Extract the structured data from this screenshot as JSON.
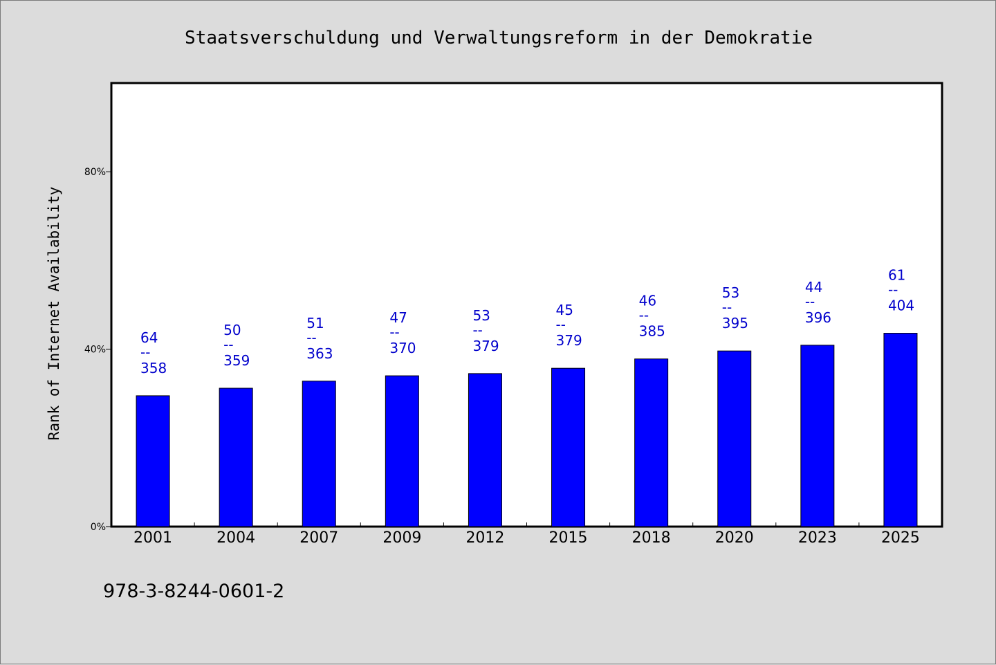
{
  "chart_data": {
    "type": "bar",
    "title": "Staatsverschuldung und Verwaltungsreform in der Demokratie",
    "ylabel": "Rank of Internet Availability",
    "xlabel": "",
    "ylim": [
      0,
      100
    ],
    "yticks": [
      0,
      40,
      80
    ],
    "ytick_labels": [
      "0%",
      "40%",
      "80%"
    ],
    "categories": [
      "2001",
      "2004",
      "2007",
      "2009",
      "2012",
      "2015",
      "2018",
      "2020",
      "2023",
      "2025"
    ],
    "values": [
      29.5,
      31.2,
      32.8,
      34.0,
      34.5,
      35.7,
      37.8,
      39.6,
      40.9,
      43.6
    ],
    "data_labels": [
      {
        "top": "64",
        "sep": "--",
        "bottom": "358"
      },
      {
        "top": "50",
        "sep": "--",
        "bottom": "359"
      },
      {
        "top": "51",
        "sep": "--",
        "bottom": "363"
      },
      {
        "top": "47",
        "sep": "--",
        "bottom": "370"
      },
      {
        "top": "53",
        "sep": "--",
        "bottom": "379"
      },
      {
        "top": "45",
        "sep": "--",
        "bottom": "379"
      },
      {
        "top": "46",
        "sep": "--",
        "bottom": "385"
      },
      {
        "top": "53",
        "sep": "--",
        "bottom": "395"
      },
      {
        "top": "44",
        "sep": "--",
        "bottom": "396"
      },
      {
        "top": "61",
        "sep": "--",
        "bottom": "404"
      }
    ],
    "bar_color": "#0000ff",
    "label_color": "#0000cc",
    "grid": false,
    "legend": "none"
  },
  "footnote": "978-3-8244-0601-2"
}
